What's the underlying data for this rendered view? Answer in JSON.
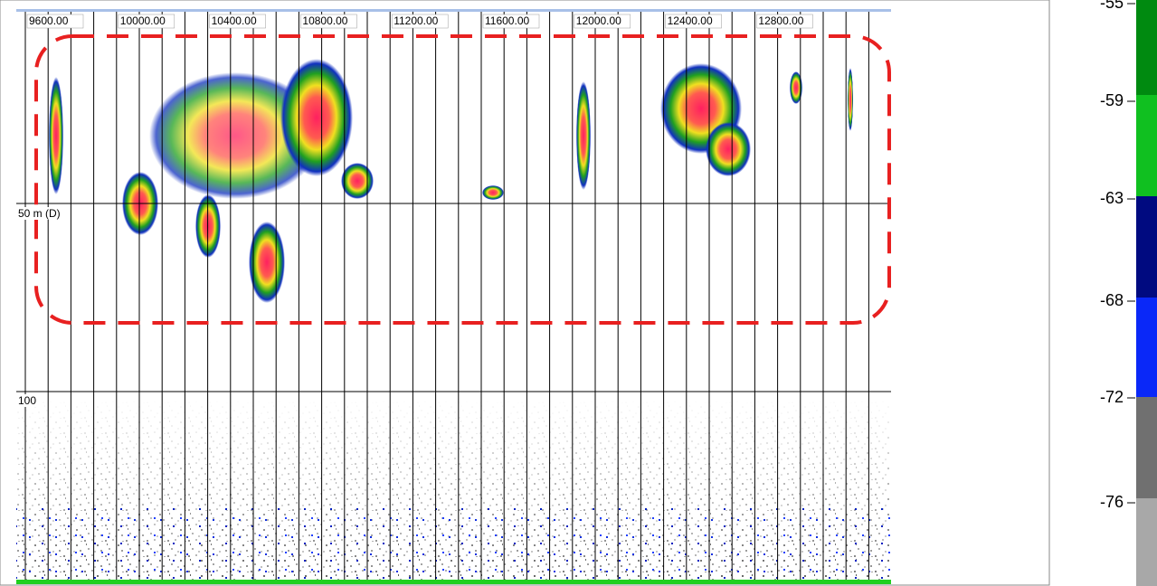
{
  "echogram": {
    "x_axis_labels": [
      "9600.00",
      "10000.00",
      "10400.00",
      "10800.00",
      "11200.00",
      "11600.00",
      "12000.00",
      "12400.00",
      "12800.00"
    ],
    "depth_labels": [
      "50 m (D)",
      "100"
    ]
  },
  "colorbar": {
    "labels": [
      "-55",
      "-59",
      "-63",
      "-68",
      "-72",
      "-76"
    ]
  }
}
